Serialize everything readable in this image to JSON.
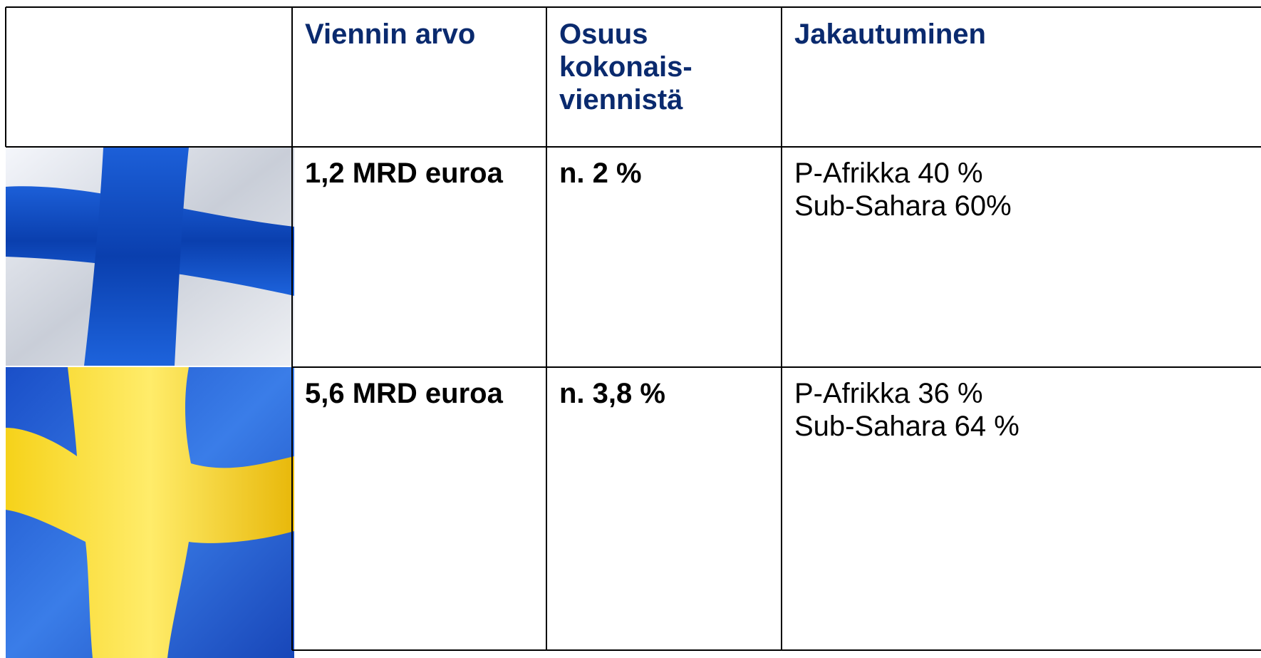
{
  "table": {
    "header": [
      [
        "Viennin arvo"
      ],
      [
        "Osuus",
        "kokonais-",
        "viennistä"
      ],
      [
        "Jakautuminen"
      ]
    ],
    "rows": [
      [
        [
          "1,2 MRD euroa"
        ],
        [
          "n. 2 %"
        ],
        [
          "P-Afrikka 40 %",
          "Sub-Sahara 60%"
        ]
      ],
      [
        [
          "5,6 MRD euroa"
        ],
        [
          "n. 3,8 %"
        ],
        [
          "P-Afrikka 36 %",
          "Sub-Sahara 64 %"
        ]
      ]
    ]
  }
}
